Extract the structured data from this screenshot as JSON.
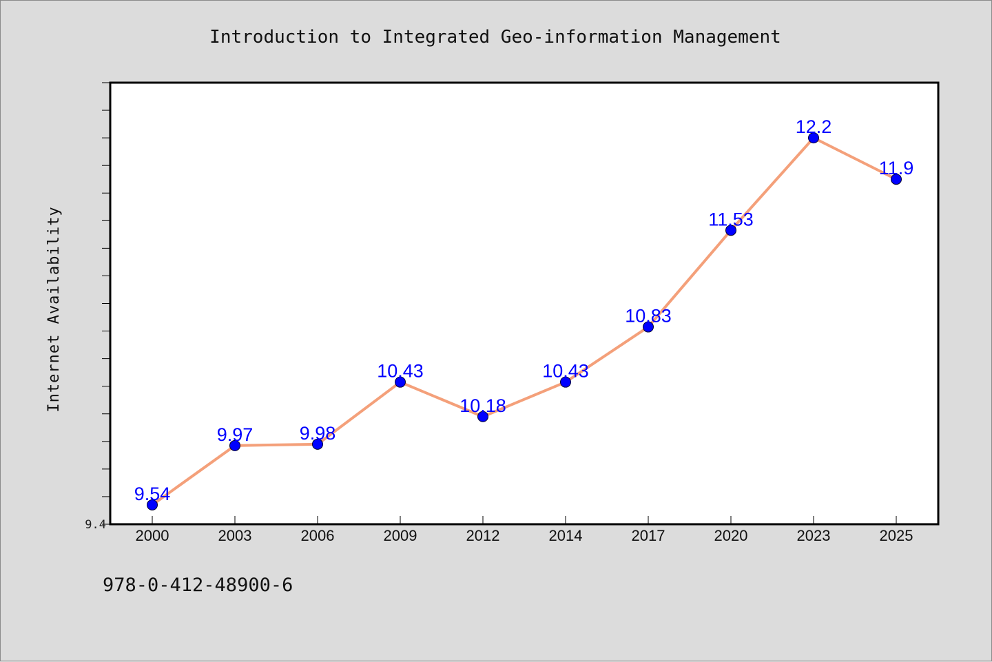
{
  "chart_data": {
    "type": "line",
    "title": "Introduction to Integrated Geo-information Management",
    "xlabel": "",
    "ylabel": "Internet Availability",
    "categories": [
      "2000",
      "2003",
      "2006",
      "2009",
      "2012",
      "2014",
      "2017",
      "2020",
      "2023",
      "2025"
    ],
    "series": [
      {
        "values": [
          9.54,
          9.97,
          9.98,
          10.43,
          10.18,
          10.43,
          10.83,
          11.53,
          12.2,
          11.9
        ],
        "labels": [
          "9.54",
          "9.97",
          "9.98",
          "10.43",
          "10.18",
          "10.43",
          "10.83",
          "11.53",
          "12.2",
          "11.9"
        ]
      }
    ],
    "ylim": [
      9.4,
      12.6
    ],
    "yticks": [
      "9.4"
    ],
    "grid": false,
    "legend": "none",
    "colors": {
      "line": "#f4a07a",
      "marker": "#0000ff",
      "data_label": "#0000ff",
      "background": "#dcdcdc",
      "plot_background": "#ffffff"
    }
  },
  "footnote": "978-0-412-48900-6"
}
